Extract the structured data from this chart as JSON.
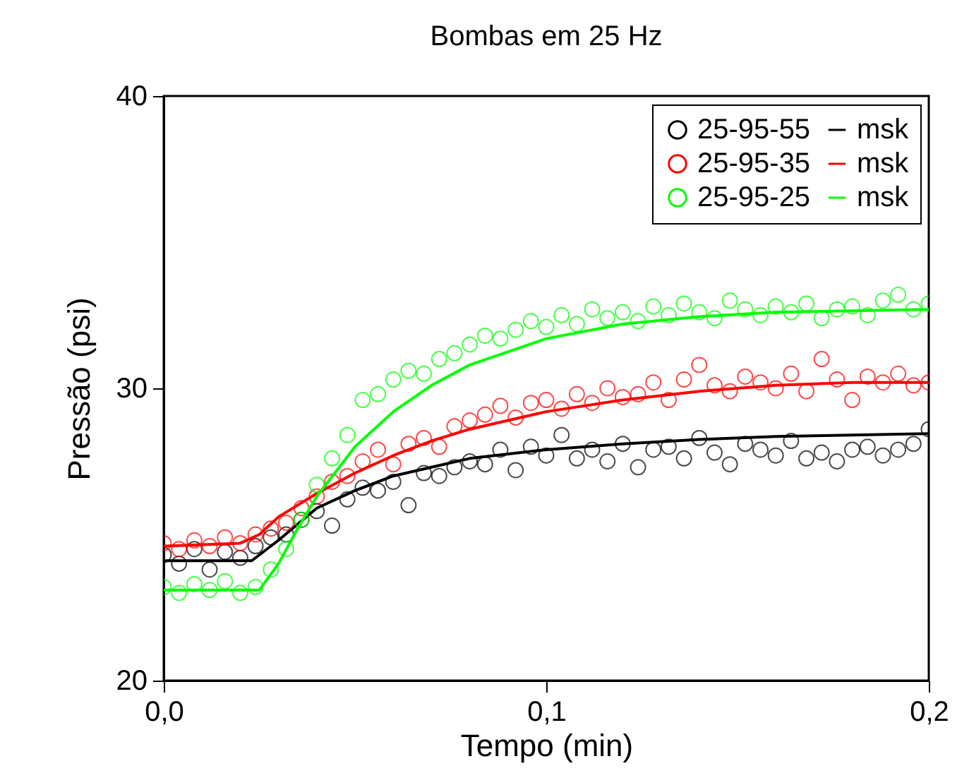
{
  "chart_data": {
    "type": "scatter",
    "title": "Bombas em 25 Hz",
    "xlabel": "Tempo (min)",
    "ylabel": "Pressão (psi)",
    "xlim": [
      0,
      0.2
    ],
    "xticks": [
      {
        "value": 0,
        "label": "0,0"
      },
      {
        "value": 0.1,
        "label": "0,1"
      },
      {
        "value": 0.2,
        "label": "0,2"
      }
    ],
    "ylim": [
      20,
      40
    ],
    "yticks": [
      20,
      30,
      40
    ],
    "grid": false,
    "legend": "top right",
    "series": [
      {
        "name": "25-95-55",
        "marker": "circle",
        "color": "#000000",
        "x": [
          0,
          0.004,
          0.008,
          0.012,
          0.016,
          0.02,
          0.024,
          0.028,
          0.032,
          0.036,
          0.04,
          0.044,
          0.048,
          0.052,
          0.056,
          0.06,
          0.064,
          0.068,
          0.072,
          0.076,
          0.08,
          0.084,
          0.088,
          0.092,
          0.096,
          0.1,
          0.104,
          0.108,
          0.112,
          0.116,
          0.12,
          0.124,
          0.128,
          0.132,
          0.136,
          0.14,
          0.144,
          0.148,
          0.152,
          0.156,
          0.16,
          0.164,
          0.168,
          0.172,
          0.176,
          0.18,
          0.184,
          0.188,
          0.192,
          0.196,
          0.2
        ],
        "values": [
          24.3,
          24.0,
          24.5,
          23.8,
          24.4,
          24.2,
          24.6,
          24.9,
          25.0,
          25.5,
          25.8,
          25.3,
          26.2,
          26.6,
          26.5,
          26.8,
          26.0,
          27.1,
          27.0,
          27.3,
          27.5,
          27.4,
          27.9,
          27.2,
          28.0,
          27.7,
          28.4,
          27.6,
          27.9,
          27.5,
          28.1,
          27.3,
          27.9,
          28.0,
          27.6,
          28.3,
          27.8,
          27.4,
          28.1,
          27.9,
          27.7,
          28.2,
          27.6,
          27.8,
          27.5,
          27.9,
          28.0,
          27.7,
          27.9,
          28.1,
          28.6
        ]
      },
      {
        "name": "msk",
        "type": "line",
        "color": "#000000",
        "x": [
          0,
          0.023,
          0.03,
          0.04,
          0.05,
          0.06,
          0.07,
          0.08,
          0.1,
          0.12,
          0.14,
          0.16,
          0.18,
          0.2
        ],
        "values": [
          24.1,
          24.1,
          24.8,
          25.9,
          26.5,
          27.0,
          27.3,
          27.6,
          27.9,
          28.1,
          28.25,
          28.35,
          28.4,
          28.45
        ]
      },
      {
        "name": "25-95-35",
        "marker": "circle",
        "color": "#ff0000",
        "x": [
          0,
          0.004,
          0.008,
          0.012,
          0.016,
          0.02,
          0.024,
          0.028,
          0.032,
          0.036,
          0.04,
          0.044,
          0.048,
          0.052,
          0.056,
          0.06,
          0.064,
          0.068,
          0.072,
          0.076,
          0.08,
          0.084,
          0.088,
          0.092,
          0.096,
          0.1,
          0.104,
          0.108,
          0.112,
          0.116,
          0.12,
          0.124,
          0.128,
          0.132,
          0.136,
          0.14,
          0.144,
          0.148,
          0.152,
          0.156,
          0.16,
          0.164,
          0.168,
          0.172,
          0.176,
          0.18,
          0.184,
          0.188,
          0.192,
          0.196,
          0.2
        ],
        "values": [
          24.7,
          24.5,
          24.8,
          24.6,
          24.9,
          24.7,
          25.0,
          25.2,
          25.4,
          25.9,
          26.3,
          26.8,
          27.0,
          27.5,
          27.9,
          27.4,
          28.1,
          28.3,
          28.0,
          28.7,
          28.9,
          29.1,
          29.4,
          29.0,
          29.5,
          29.6,
          29.3,
          29.8,
          29.5,
          30.0,
          29.7,
          29.8,
          30.2,
          29.6,
          30.3,
          30.8,
          30.1,
          29.9,
          30.4,
          30.2,
          30.0,
          30.5,
          29.9,
          31.0,
          30.3,
          29.6,
          30.4,
          30.2,
          30.5,
          30.1,
          30.2
        ]
      },
      {
        "name": "msk",
        "type": "line",
        "color": "#ff0000",
        "x": [
          0,
          0.02,
          0.025,
          0.03,
          0.04,
          0.05,
          0.06,
          0.07,
          0.08,
          0.1,
          0.12,
          0.14,
          0.16,
          0.18,
          0.2
        ],
        "values": [
          24.6,
          24.7,
          25.0,
          25.6,
          26.4,
          27.1,
          27.7,
          28.2,
          28.6,
          29.2,
          29.6,
          29.9,
          30.1,
          30.2,
          30.2
        ]
      },
      {
        "name": "25-95-25",
        "marker": "circle",
        "color": "#00ff00",
        "x": [
          0,
          0.004,
          0.008,
          0.012,
          0.016,
          0.02,
          0.024,
          0.028,
          0.032,
          0.036,
          0.04,
          0.044,
          0.048,
          0.052,
          0.056,
          0.06,
          0.064,
          0.068,
          0.072,
          0.076,
          0.08,
          0.084,
          0.088,
          0.092,
          0.096,
          0.1,
          0.104,
          0.108,
          0.112,
          0.116,
          0.12,
          0.124,
          0.128,
          0.132,
          0.136,
          0.14,
          0.144,
          0.148,
          0.152,
          0.156,
          0.16,
          0.164,
          0.168,
          0.172,
          0.176,
          0.18,
          0.184,
          0.188,
          0.192,
          0.196,
          0.2
        ],
        "values": [
          23.2,
          23.0,
          23.3,
          23.1,
          23.4,
          23.0,
          23.2,
          23.8,
          24.5,
          25.5,
          26.7,
          27.6,
          28.4,
          29.6,
          29.8,
          30.3,
          30.6,
          30.5,
          31.0,
          31.2,
          31.5,
          31.8,
          31.7,
          32.0,
          32.3,
          32.1,
          32.5,
          32.2,
          32.7,
          32.4,
          32.6,
          32.3,
          32.8,
          32.5,
          32.9,
          32.6,
          32.4,
          33.0,
          32.7,
          32.5,
          32.8,
          32.6,
          32.9,
          32.4,
          32.7,
          32.8,
          32.5,
          33.0,
          33.2,
          32.7,
          32.9
        ]
      },
      {
        "name": "msk",
        "type": "line",
        "color": "#00ff00",
        "x": [
          0,
          0.025,
          0.03,
          0.035,
          0.04,
          0.05,
          0.06,
          0.07,
          0.08,
          0.1,
          0.12,
          0.14,
          0.16,
          0.18,
          0.2
        ],
        "values": [
          23.1,
          23.1,
          24.0,
          25.2,
          26.3,
          28.0,
          29.2,
          30.1,
          30.8,
          31.7,
          32.2,
          32.45,
          32.6,
          32.65,
          32.7
        ]
      }
    ]
  }
}
